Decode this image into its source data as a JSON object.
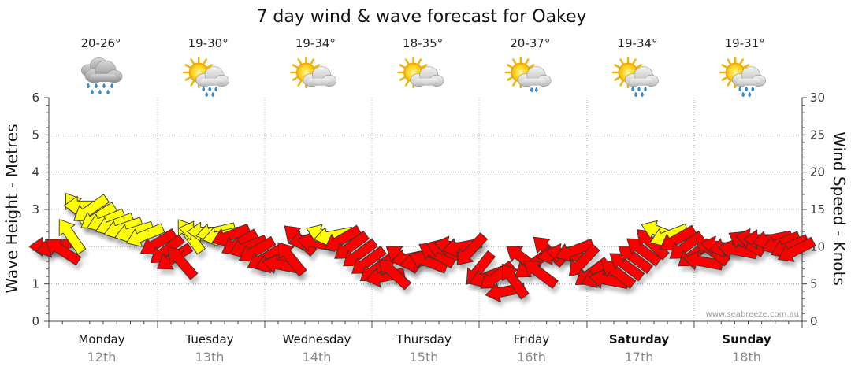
{
  "chart_data": {
    "type": "line",
    "title": "7 day wind & wave forecast for Oakey",
    "ylabel_left": "Wave Height - Metres",
    "ylabel_right": "Wind Speed - Knots",
    "y_left_lim": [
      0,
      6
    ],
    "y_left_ticks": [
      "0",
      "1",
      "2",
      "3",
      "4",
      "5",
      "6"
    ],
    "y_right_lim": [
      0,
      30
    ],
    "y_right_ticks": [
      "0",
      "5",
      "10",
      "15",
      "20",
      "25",
      "30"
    ],
    "grid": true,
    "credit": "www.seabreeze.com.au",
    "days": [
      {
        "name": "Monday",
        "date": "12th",
        "temp": "20-26°",
        "icon": "heavy-rain-cloud-icon",
        "bold": false
      },
      {
        "name": "Tuesday",
        "date": "13th",
        "temp": "19-30°",
        "icon": "sun-cloud-rain-icon",
        "bold": false
      },
      {
        "name": "Wednesday",
        "date": "14th",
        "temp": "19-34°",
        "icon": "sun-cloud-icon",
        "bold": false
      },
      {
        "name": "Thursday",
        "date": "15th",
        "temp": "18-35°",
        "icon": "sun-cloud-icon",
        "bold": false
      },
      {
        "name": "Friday",
        "date": "16th",
        "temp": "20-37°",
        "icon": "sun-cloud-drizzle-icon",
        "bold": false
      },
      {
        "name": "Saturday",
        "date": "17th",
        "temp": "19-34°",
        "icon": "sun-cloud-rain-icon",
        "bold": true
      },
      {
        "name": "Sunday",
        "date": "18th",
        "temp": "19-31°",
        "icon": "sun-cloud-rain-icon",
        "bold": true
      }
    ],
    "series": [
      {
        "name": "Wind Speed",
        "unit": "knots",
        "colors": {
          "light_wind": "#ffff00",
          "strong_wind": "#ff0000",
          "outline": "#333333"
        },
        "points": [
          {
            "t": 0.0,
            "v": 10.0,
            "c": "red"
          },
          {
            "t": 0.06,
            "v": 10.0,
            "c": "red"
          },
          {
            "t": 0.12,
            "v": 9.5,
            "c": "red"
          },
          {
            "t": 0.2,
            "v": 11.5,
            "c": "yellow"
          },
          {
            "t": 0.26,
            "v": 15.0,
            "c": "yellow"
          },
          {
            "t": 0.32,
            "v": 15.5,
            "c": "yellow"
          },
          {
            "t": 0.38,
            "v": 15.0,
            "c": "yellow"
          },
          {
            "t": 0.45,
            "v": 14.0,
            "c": "yellow"
          },
          {
            "t": 0.52,
            "v": 13.5,
            "c": "yellow"
          },
          {
            "t": 0.6,
            "v": 13.0,
            "c": "yellow"
          },
          {
            "t": 0.68,
            "v": 12.5,
            "c": "yellow"
          },
          {
            "t": 0.78,
            "v": 12.0,
            "c": "yellow"
          },
          {
            "t": 0.88,
            "v": 11.5,
            "c": "yellow"
          },
          {
            "t": 1.0,
            "v": 10.5,
            "c": "red"
          },
          {
            "t": 1.08,
            "v": 9.5,
            "c": "red"
          },
          {
            "t": 1.15,
            "v": 8.5,
            "c": "red"
          },
          {
            "t": 1.22,
            "v": 8.0,
            "c": "red"
          },
          {
            "t": 1.3,
            "v": 11.5,
            "c": "yellow"
          },
          {
            "t": 1.38,
            "v": 12.0,
            "c": "yellow"
          },
          {
            "t": 1.46,
            "v": 12.0,
            "c": "yellow"
          },
          {
            "t": 1.54,
            "v": 12.0,
            "c": "yellow"
          },
          {
            "t": 1.6,
            "v": 11.5,
            "c": "yellow"
          },
          {
            "t": 1.68,
            "v": 11.5,
            "c": "red"
          },
          {
            "t": 1.76,
            "v": 10.5,
            "c": "red"
          },
          {
            "t": 1.84,
            "v": 10.0,
            "c": "red"
          },
          {
            "t": 1.92,
            "v": 9.5,
            "c": "red"
          },
          {
            "t": 2.0,
            "v": 8.5,
            "c": "red"
          },
          {
            "t": 2.08,
            "v": 8.0,
            "c": "red"
          },
          {
            "t": 2.16,
            "v": 7.5,
            "c": "red"
          },
          {
            "t": 2.24,
            "v": 8.5,
            "c": "red"
          },
          {
            "t": 2.32,
            "v": 11.0,
            "c": "red"
          },
          {
            "t": 2.4,
            "v": 11.0,
            "c": "red"
          },
          {
            "t": 2.48,
            "v": 10.5,
            "c": "red"
          },
          {
            "t": 2.56,
            "v": 11.5,
            "c": "yellow"
          },
          {
            "t": 2.64,
            "v": 11.5,
            "c": "yellow"
          },
          {
            "t": 2.72,
            "v": 11.0,
            "c": "red"
          },
          {
            "t": 2.8,
            "v": 10.0,
            "c": "red"
          },
          {
            "t": 2.88,
            "v": 9.0,
            "c": "red"
          },
          {
            "t": 2.96,
            "v": 8.0,
            "c": "red"
          },
          {
            "t": 3.04,
            "v": 7.0,
            "c": "red"
          },
          {
            "t": 3.12,
            "v": 6.0,
            "c": "red"
          },
          {
            "t": 3.2,
            "v": 6.5,
            "c": "red"
          },
          {
            "t": 3.28,
            "v": 8.5,
            "c": "red"
          },
          {
            "t": 3.36,
            "v": 8.5,
            "c": "red"
          },
          {
            "t": 3.44,
            "v": 8.0,
            "c": "red"
          },
          {
            "t": 3.52,
            "v": 8.0,
            "c": "red"
          },
          {
            "t": 3.6,
            "v": 9.0,
            "c": "red"
          },
          {
            "t": 3.68,
            "v": 9.5,
            "c": "red"
          },
          {
            "t": 3.76,
            "v": 10.0,
            "c": "red"
          },
          {
            "t": 3.84,
            "v": 10.0,
            "c": "red"
          },
          {
            "t": 3.92,
            "v": 9.5,
            "c": "red"
          },
          {
            "t": 4.0,
            "v": 7.0,
            "c": "red"
          },
          {
            "t": 4.08,
            "v": 6.0,
            "c": "red"
          },
          {
            "t": 4.16,
            "v": 6.0,
            "c": "red"
          },
          {
            "t": 4.24,
            "v": 4.0,
            "c": "red"
          },
          {
            "t": 4.32,
            "v": 5.5,
            "c": "red"
          },
          {
            "t": 4.4,
            "v": 8.5,
            "c": "red"
          },
          {
            "t": 4.48,
            "v": 7.5,
            "c": "red"
          },
          {
            "t": 4.56,
            "v": 6.5,
            "c": "red"
          },
          {
            "t": 4.64,
            "v": 9.5,
            "c": "red"
          },
          {
            "t": 4.72,
            "v": 9.0,
            "c": "red"
          },
          {
            "t": 4.8,
            "v": 9.0,
            "c": "red"
          },
          {
            "t": 4.88,
            "v": 9.5,
            "c": "red"
          },
          {
            "t": 4.96,
            "v": 8.0,
            "c": "red"
          },
          {
            "t": 5.04,
            "v": 6.5,
            "c": "red"
          },
          {
            "t": 5.12,
            "v": 6.0,
            "c": "red"
          },
          {
            "t": 5.2,
            "v": 5.5,
            "c": "red"
          },
          {
            "t": 5.28,
            "v": 6.5,
            "c": "red"
          },
          {
            "t": 5.36,
            "v": 7.5,
            "c": "red"
          },
          {
            "t": 5.44,
            "v": 8.5,
            "c": "red"
          },
          {
            "t": 5.52,
            "v": 9.5,
            "c": "red"
          },
          {
            "t": 5.6,
            "v": 10.5,
            "c": "red"
          },
          {
            "t": 5.68,
            "v": 12.0,
            "c": "yellow"
          },
          {
            "t": 5.76,
            "v": 11.5,
            "c": "yellow"
          },
          {
            "t": 5.84,
            "v": 11.0,
            "c": "red"
          },
          {
            "t": 5.92,
            "v": 10.0,
            "c": "red"
          },
          {
            "t": 6.0,
            "v": 9.0,
            "c": "red"
          },
          {
            "t": 6.08,
            "v": 8.0,
            "c": "red"
          },
          {
            "t": 6.16,
            "v": 9.5,
            "c": "red"
          },
          {
            "t": 6.24,
            "v": 10.0,
            "c": "red"
          },
          {
            "t": 6.32,
            "v": 10.0,
            "c": "red"
          },
          {
            "t": 6.4,
            "v": 9.5,
            "c": "red"
          },
          {
            "t": 6.48,
            "v": 10.5,
            "c": "red"
          },
          {
            "t": 6.56,
            "v": 11.0,
            "c": "red"
          },
          {
            "t": 6.64,
            "v": 11.0,
            "c": "red"
          },
          {
            "t": 6.72,
            "v": 11.0,
            "c": "red"
          },
          {
            "t": 6.8,
            "v": 10.5,
            "c": "red"
          },
          {
            "t": 6.88,
            "v": 10.0,
            "c": "red"
          },
          {
            "t": 6.94,
            "v": 9.5,
            "c": "red"
          }
        ]
      }
    ]
  }
}
